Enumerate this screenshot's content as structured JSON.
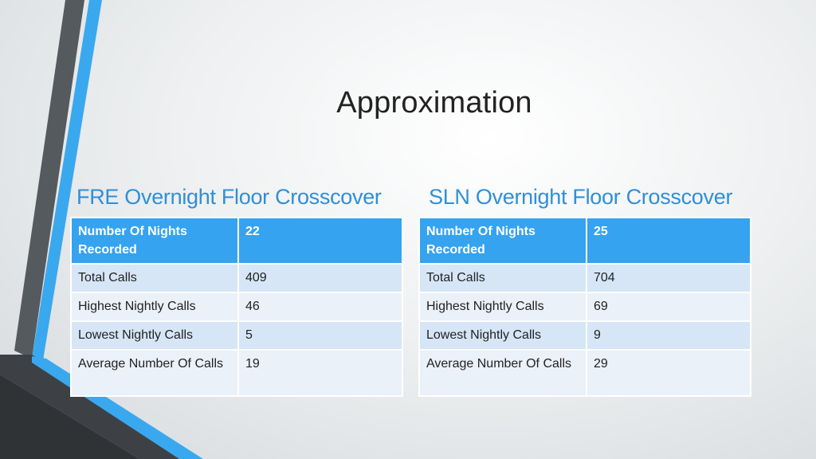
{
  "slide": {
    "title": "Approximation",
    "accent_color": "#2f8fd8",
    "header_row_color": "#35a3ef"
  },
  "tables": [
    {
      "heading": "FRE Overnight Floor Crosscover",
      "rows": [
        {
          "label": "Number Of Nights Recorded",
          "value": "22"
        },
        {
          "label": "Total Calls",
          "value": "409"
        },
        {
          "label": "Highest Nightly Calls",
          "value": "46"
        },
        {
          "label": "Lowest Nightly Calls",
          "value": "5"
        },
        {
          "label": "Average Number Of Calls",
          "value": "19"
        }
      ]
    },
    {
      "heading": "SLN Overnight Floor Crosscover",
      "rows": [
        {
          "label": "Number Of Nights Recorded",
          "value": "25"
        },
        {
          "label": "Total Calls",
          "value": "704"
        },
        {
          "label": "Highest Nightly Calls",
          "value": "69"
        },
        {
          "label": "Lowest Nightly Calls",
          "value": "9"
        },
        {
          "label": "Average Number Of Calls",
          "value": "29"
        }
      ]
    }
  ]
}
